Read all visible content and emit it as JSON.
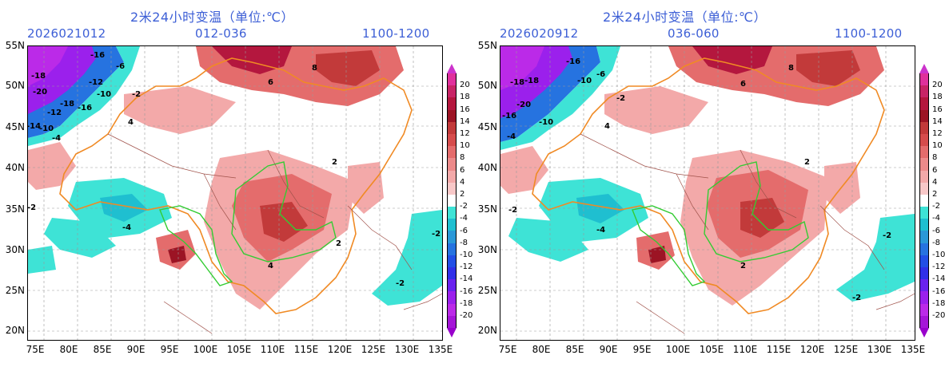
{
  "panels": [
    {
      "title": "2米24小时变温（单位:℃）",
      "init_time": "2026021012",
      "forecast_hours": "012-036",
      "valid_hours": "1100-1200"
    },
    {
      "title": "2米24小时变温（单位:℃）",
      "init_time": "2026020912",
      "forecast_hours": "036-060",
      "valid_hours": "1100-1200"
    }
  ],
  "lat_labels": [
    "55N",
    "50N",
    "45N",
    "40N",
    "35N",
    "30N",
    "25N",
    "20N"
  ],
  "lon_labels": [
    "75E",
    "80E",
    "85E",
    "90E",
    "95E",
    "100E",
    "105E",
    "110E",
    "115E",
    "120E",
    "125E",
    "130E",
    "135E"
  ],
  "colorbar": {
    "labels": [
      "20",
      "18",
      "16",
      "14",
      "12",
      "10",
      "8",
      "6",
      "4",
      "2",
      "-2",
      "-4",
      "-6",
      "-8",
      "-10",
      "-12",
      "-14",
      "-16",
      "-18",
      "-20"
    ],
    "colors": [
      "#e0309c",
      "#c82466",
      "#b4173e",
      "#9c1424",
      "#c23a3a",
      "#d64c4c",
      "#e46c6c",
      "#ec8a8a",
      "#f3a9a9",
      "#f8c8c8",
      "#ffffff",
      "#3ee3d6",
      "#1fbfd0",
      "#2a98d8",
      "#2673e0",
      "#224fe6",
      "#3030e8",
      "#6a22ee",
      "#9b20ec",
      "#bb2ae8",
      "#a515d8"
    ]
  },
  "contour_labels_left": [
    "-16",
    "-18",
    "-12",
    "-20",
    "-18",
    "-16",
    "-12",
    "-14",
    "-10",
    "-10",
    "-6",
    "-4",
    "-2",
    "4",
    "6",
    "8",
    "2",
    "-2",
    "-4",
    "-2",
    "-2",
    "2",
    "4"
  ],
  "contour_labels_right": [
    "-16",
    "-18",
    "-10",
    "-20",
    "-18",
    "-16",
    "-10",
    "-6",
    "-4",
    "-2",
    "4",
    "6",
    "8",
    "2",
    "-2",
    "-4",
    "-2",
    "-2",
    "2"
  ],
  "colors": {
    "title_blue": "#3d5fd6",
    "warm_light": "#f3a9a9",
    "warm_mid": "#e46c6c",
    "warm_dark": "#b4173e",
    "cold_cyan": "#3ee3d6",
    "cold_blue": "#2673e0",
    "cold_purple": "#bb2ae8",
    "border_orange": "#f08a24",
    "basin_green": "#33cc33"
  }
}
